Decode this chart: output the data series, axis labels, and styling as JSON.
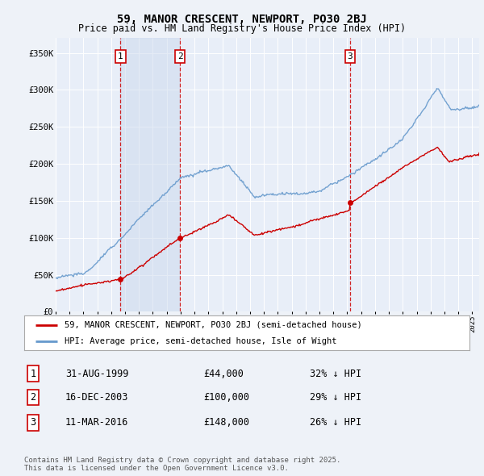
{
  "title": "59, MANOR CRESCENT, NEWPORT, PO30 2BJ",
  "subtitle": "Price paid vs. HM Land Registry's House Price Index (HPI)",
  "ylabel_ticks": [
    "£0",
    "£50K",
    "£100K",
    "£150K",
    "£200K",
    "£250K",
    "£300K",
    "£350K"
  ],
  "ylim": [
    0,
    370000
  ],
  "yticks": [
    0,
    50000,
    100000,
    150000,
    200000,
    250000,
    300000,
    350000
  ],
  "xlim": [
    1995,
    2025.5
  ],
  "background_color": "#eef2f8",
  "plot_bg": "#e8eef8",
  "transactions": [
    {
      "num": 1,
      "date": "31-AUG-1999",
      "price": 44000,
      "pct": "32%",
      "x_year": 1999.67
    },
    {
      "num": 2,
      "date": "16-DEC-2003",
      "price": 100000,
      "pct": "29%",
      "x_year": 2003.96
    },
    {
      "num": 3,
      "date": "11-MAR-2016",
      "price": 148000,
      "pct": "26%",
      "x_year": 2016.19
    }
  ],
  "legend_entries": [
    "59, MANOR CRESCENT, NEWPORT, PO30 2BJ (semi-detached house)",
    "HPI: Average price, semi-detached house, Isle of Wight"
  ],
  "footer": "Contains HM Land Registry data © Crown copyright and database right 2025.\nThis data is licensed under the Open Government Licence v3.0.",
  "red_color": "#cc0000",
  "blue_color": "#6699cc",
  "vspan_color": "#ccd9ee",
  "grid_color": "white",
  "title_fontsize": 10,
  "subtitle_fontsize": 9
}
